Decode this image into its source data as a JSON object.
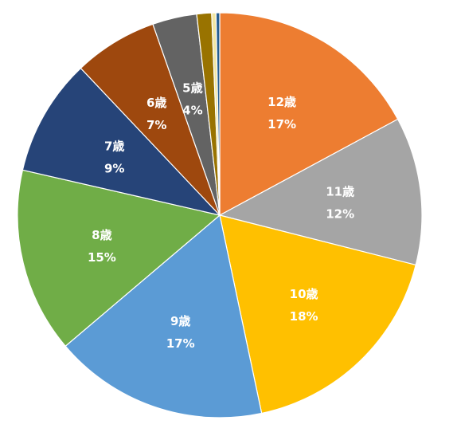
{
  "chart_data": {
    "type": "pie",
    "start_angle_deg": 0,
    "direction": "clockwise",
    "slices": [
      {
        "name": "12歳",
        "value": 17.4,
        "label_value": "17%",
        "color": "#ED7D31"
      },
      {
        "name": "11歳",
        "value": 12.0,
        "label_value": "12%",
        "color": "#A5A5A5"
      },
      {
        "name": "10歳",
        "value": 18.0,
        "label_value": "18%",
        "color": "#FFC000"
      },
      {
        "name": "9歳",
        "value": 17.4,
        "label_value": "17%",
        "color": "#5B9BD5"
      },
      {
        "name": "8歳",
        "value": 15.0,
        "label_value": "15%",
        "color": "#70AD47"
      },
      {
        "name": "7歳",
        "value": 9.5,
        "label_value": "9%",
        "color": "#264478"
      },
      {
        "name": "6歳",
        "value": 6.8,
        "label_value": "7%",
        "color": "#9E480E"
      },
      {
        "name": "5歳",
        "value": 3.6,
        "label_value": "4%",
        "color": "#636363"
      },
      {
        "name": "",
        "value": 1.2,
        "label_value": "",
        "color": "#997300"
      },
      {
        "name": "",
        "value": 0.35,
        "label_value": "",
        "color": "#F2E6A3"
      },
      {
        "name": "",
        "value": 0.3,
        "label_value": "",
        "color": "#255E91"
      }
    ]
  }
}
